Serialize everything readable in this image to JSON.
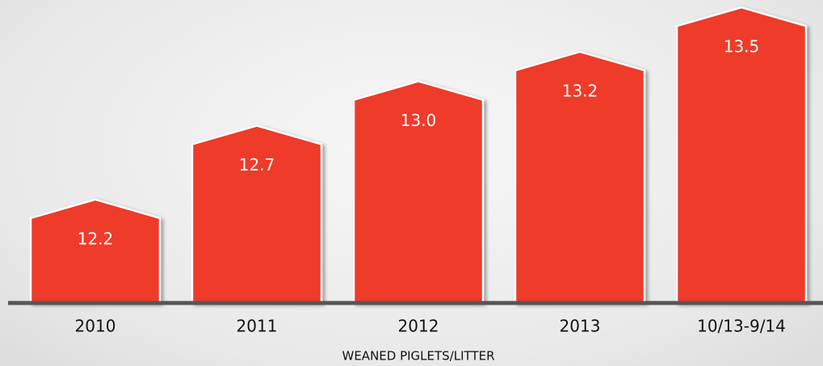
{
  "chart_data": {
    "type": "bar",
    "categories": [
      "2010",
      "2011",
      "2012",
      "2013",
      "10/13-9/14"
    ],
    "values": [
      12.2,
      12.7,
      13.0,
      13.2,
      13.5
    ],
    "value_labels": [
      "12.2",
      "12.7",
      "13.0",
      "13.2",
      "13.5"
    ],
    "color": "#ee3a2c",
    "xlabel": "WEANED PIGLETS/LITTER",
    "ylim": [
      11.5,
      13.55
    ]
  }
}
